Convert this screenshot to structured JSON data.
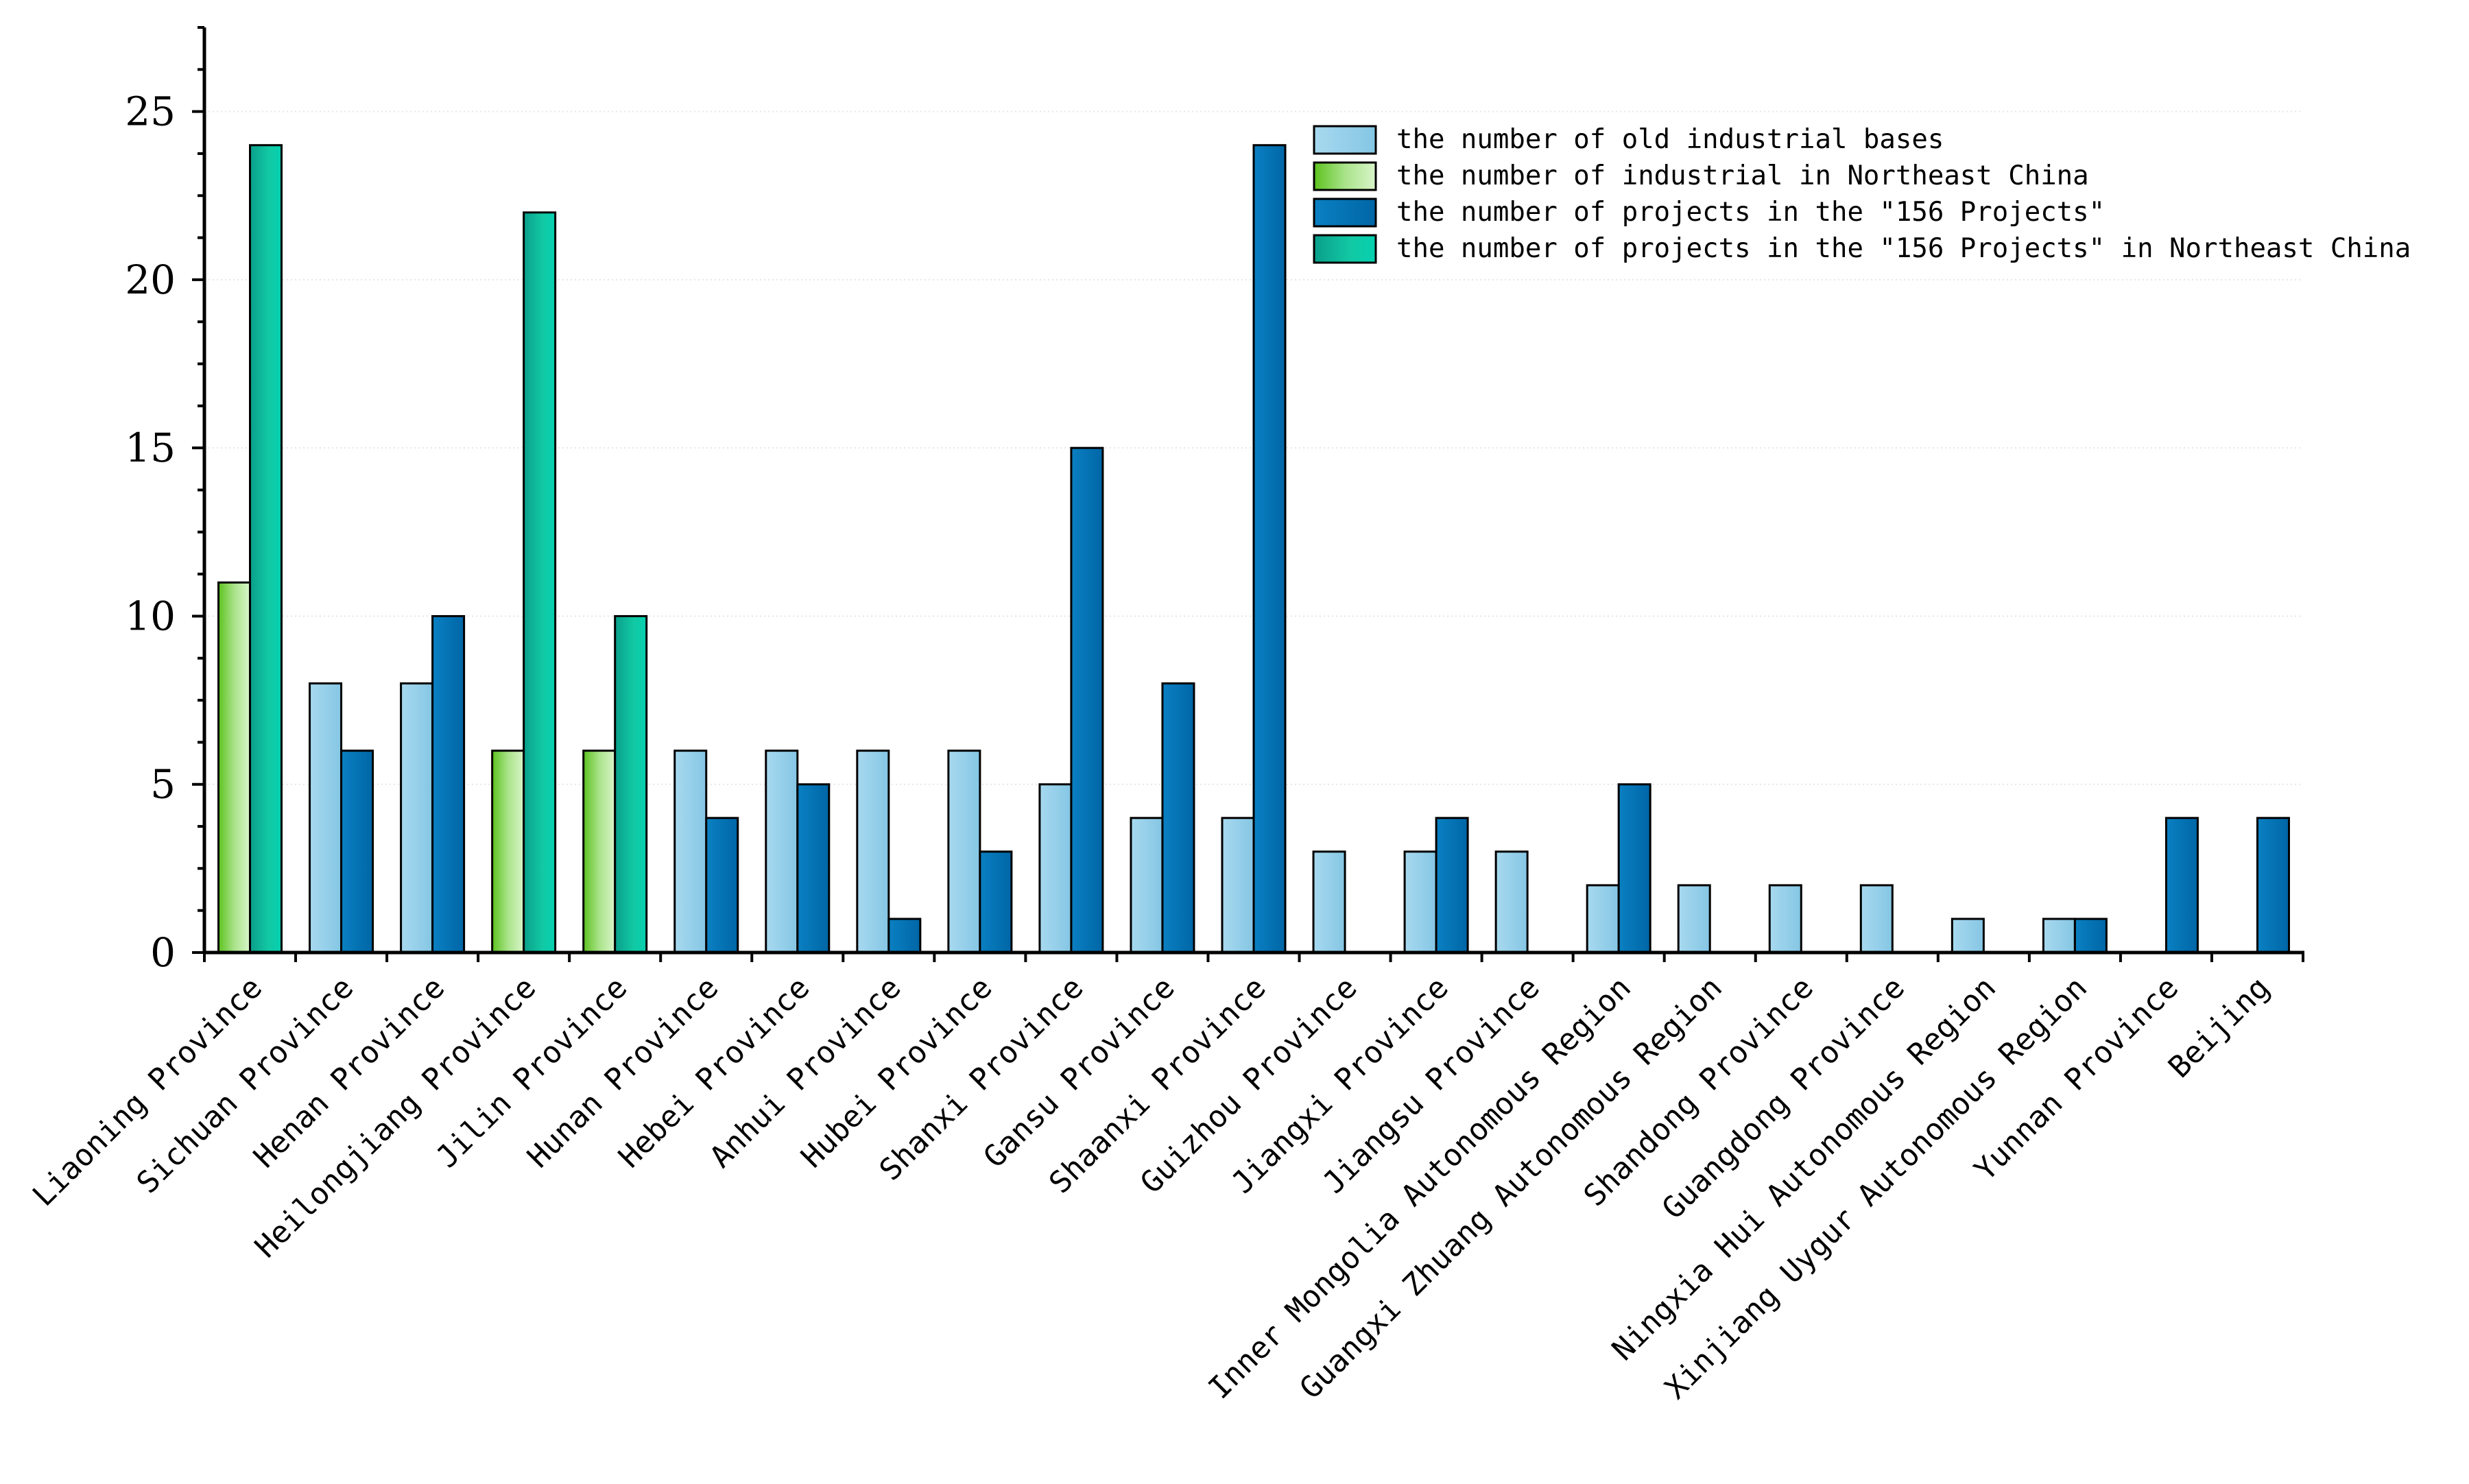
{
  "chart_data": {
    "type": "bar",
    "title": "",
    "xlabel": "",
    "ylabel": "",
    "ylim": [
      0,
      27.5
    ],
    "yticks": [
      0,
      5,
      10,
      15,
      20,
      25
    ],
    "grid": "horizontal dotted",
    "legend_position": "top-right",
    "categories": [
      "Liaoning Province",
      "Sichuan Province",
      "Henan Province",
      "Heilongjiang Province",
      "Jilin Province",
      "Hunan Province",
      "Hebei Province",
      "Anhui Province",
      "Hubei Province",
      "Shanxi Province",
      "Gansu Province",
      "Shaanxi Province",
      "Guizhou Province",
      "Jiangxi Province",
      "Jiangsu Province",
      "Inner Mongolia Autonomous Region",
      "Guangxi Zhuang Autonomous Region",
      "Shandong Province",
      "Guangdong Province",
      "Ningxia Hui Autonomous Region",
      "Xinjiang Uygur Autonomous Region",
      "Yunnan Province",
      "Beijing"
    ],
    "series": [
      {
        "name": "the number of old industrial bases",
        "color": "#91cde8",
        "slot": "left",
        "values": [
          null,
          8,
          8,
          null,
          null,
          6,
          6,
          6,
          6,
          5,
          4,
          4,
          3,
          3,
          3,
          2,
          2,
          2,
          2,
          1,
          1,
          null,
          null
        ]
      },
      {
        "name": "the number of industrial in Northeast China",
        "color": "#8fd86a",
        "slot": "left",
        "values": [
          11,
          null,
          null,
          6,
          6,
          null,
          null,
          null,
          null,
          null,
          null,
          null,
          null,
          null,
          null,
          null,
          null,
          null,
          null,
          null,
          null,
          null,
          null
        ]
      },
      {
        "name": "the number of projects in the \"156 Projects\"",
        "color": "#0274b5",
        "slot": "right",
        "values": [
          null,
          6,
          10,
          null,
          null,
          4,
          5,
          1,
          3,
          15,
          8,
          24,
          null,
          4,
          null,
          5,
          null,
          null,
          null,
          null,
          1,
          4,
          4
        ]
      },
      {
        "name": "the number of projects in the \"156 Projects\" in Northeast China",
        "color": "#0ec49d",
        "slot": "right",
        "values": [
          24,
          null,
          null,
          22,
          10,
          null,
          null,
          null,
          null,
          null,
          null,
          null,
          null,
          null,
          null,
          null,
          null,
          null,
          null,
          null,
          null,
          null,
          null
        ]
      }
    ]
  }
}
